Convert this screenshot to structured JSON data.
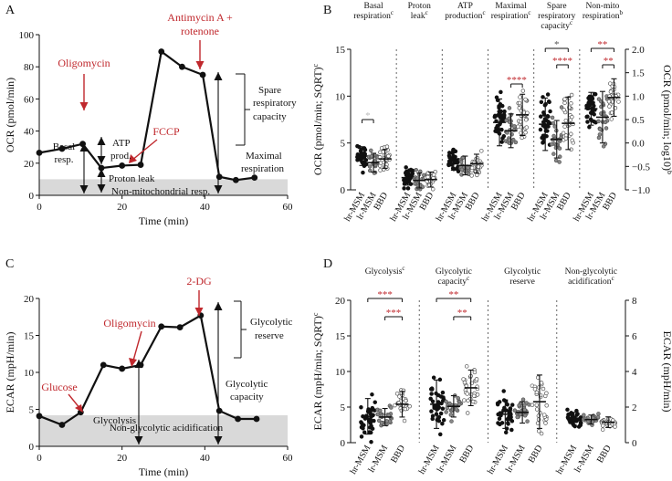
{
  "panels": {
    "a": "A",
    "b": "B",
    "c": "C",
    "d": "D"
  },
  "colors": {
    "accent_red": "#c0282d",
    "highlight_gray": "#bbbbbb",
    "baseline_gray": "#d9d9d9",
    "black": "#111111"
  },
  "panel_a": {
    "chart_data": {
      "type": "line",
      "title": "",
      "xlabel": "Time (min)",
      "ylabel": "OCR (pmol/min)",
      "xlim": [
        0,
        60
      ],
      "ylim": [
        0,
        100
      ],
      "xticks": [
        "0",
        "20",
        "40",
        "60"
      ],
      "yticks": [
        "0",
        "20",
        "40",
        "60",
        "80",
        "100"
      ],
      "series": [
        {
          "name": "OCR",
          "x": [
            0,
            5.5,
            10.5,
            15,
            20,
            24.5,
            29.5,
            34.5,
            39.5,
            43.5,
            47.5,
            52
          ],
          "y": [
            26.5,
            29,
            32,
            17,
            18.5,
            19,
            89.5,
            80,
            75,
            11.5,
            9.5,
            11
          ]
        }
      ],
      "baseline_top": 10
    },
    "labels": {
      "oligomycin": "Oligomycin",
      "fccp": "FCCP",
      "antimycin_1": "Antimycin A +",
      "antimycin_2": "rotenone",
      "basal_1": "Basal",
      "basal_2": "resp.",
      "atp_1": "ATP",
      "atp_2": "prod.",
      "proton_leak": "Proton leak",
      "nonmito": "Non-mitochondrial resp.",
      "spare_1": "Spare",
      "spare_2": "respiratory",
      "spare_3": "capacity",
      "maximal_1": "Maximal",
      "maximal_2": "respiration"
    }
  },
  "panel_c": {
    "chart_data": {
      "type": "line",
      "title": "",
      "xlabel": "Time (min)",
      "ylabel": "ECAR (mpH/min)",
      "xlim": [
        0,
        60
      ],
      "ylim": [
        0,
        20
      ],
      "xticks": [
        "0",
        "20",
        "40",
        "60"
      ],
      "yticks": [
        "0",
        "5",
        "10",
        "15",
        "20"
      ],
      "series": [
        {
          "name": "ECAR",
          "x": [
            0,
            5.5,
            10,
            15.5,
            20,
            24.5,
            29.5,
            34,
            39,
            43.5,
            48,
            52.5
          ],
          "y": [
            4.1,
            2.9,
            4.6,
            11,
            10.5,
            11,
            16.2,
            16.1,
            17.7,
            4.8,
            3.7,
            3.7
          ]
        }
      ],
      "baseline_top": 4.2
    },
    "labels": {
      "two_dg": "2-DG",
      "oligomycin": "Oligomycin",
      "glucose": "Glucose",
      "glycolysis": "Glycolysis",
      "glycolytic_1": "Glycolytic",
      "glycolytic_2": "reserve",
      "capacity_1": "Glycolytic",
      "capacity_2": "capacity",
      "nonglyc": "Non-glycolytic acidification"
    }
  },
  "panel_b": {
    "chart_data": {
      "type": "scatter",
      "ylabel_left": "OCR (pmol/min; SQRT)",
      "ylabel_left_sup": "c",
      "ylabel_right": "OCR (pmol/min; log10)",
      "ylabel_right_sup": "b",
      "ylim_left": [
        0,
        15
      ],
      "ylim_right": [
        -1,
        2
      ],
      "yticks_left": [
        "0",
        "5",
        "10",
        "15"
      ],
      "yticks_right": [
        "−1.0",
        "−0.5",
        "0.0",
        "0.5",
        "1.0",
        "1.5",
        "2.0"
      ],
      "groups": [
        "hr-MSM",
        "lr-MSM",
        "BBD"
      ],
      "sections": [
        {
          "name": "Basal respiration",
          "axis": "left",
          "means": [
            3.6,
            2.9,
            3.3
          ],
          "sd": [
            1.0,
            1.0,
            1.0
          ]
        },
        {
          "name": "Proton leak",
          "axis": "left",
          "means": [
            1.3,
            1.0,
            1.1
          ],
          "sd": [
            0.8,
            0.8,
            0.8
          ]
        },
        {
          "name": "ATP production",
          "axis": "left",
          "means": [
            3.1,
            2.6,
            2.8
          ],
          "sd": [
            1.0,
            1.0,
            1.0
          ]
        },
        {
          "name": "Maximal respiration",
          "axis": "left",
          "means": [
            7.2,
            6.3,
            8.0
          ],
          "sd": [
            2.5,
            1.8,
            2.2
          ]
        },
        {
          "name": "Spare respiratory capacity",
          "axis": "left",
          "means": [
            7.0,
            5.4,
            7.1
          ],
          "sd": [
            2.8,
            2.0,
            2.8
          ]
        },
        {
          "name": "Non-mito respiration",
          "axis": "right",
          "means": [
            0.73,
            0.55,
            0.97
          ],
          "sd": [
            0.35,
            0.55,
            0.4
          ]
        }
      ]
    },
    "headers": [
      [
        "Basal",
        "respiration",
        "c"
      ],
      [
        "Proton",
        "leak",
        "c"
      ],
      [
        "ATP",
        "production",
        "c"
      ],
      [
        "Maximal",
        "respiration",
        "c"
      ],
      [
        "Spare",
        "respiratory",
        "capacity",
        "c"
      ],
      [
        "Non-mito",
        "respiration",
        "b"
      ]
    ],
    "sig_marks": {
      "basal": "*",
      "maximal": "****",
      "spare_top": "*",
      "spare_mid": "****",
      "nonmito_top": "**",
      "nonmito_mid": "**"
    }
  },
  "panel_d": {
    "chart_data": {
      "type": "scatter",
      "ylabel_left": "ECAR (mpH/min; SQRT)",
      "ylabel_left_sup": "c",
      "ylabel_right": "ECAR (mpH/min)",
      "ylim_left": [
        0,
        20
      ],
      "ylim_right": [
        0,
        8
      ],
      "yticks_left": [
        "0",
        "5",
        "10",
        "15",
        "20"
      ],
      "yticks_right": [
        "0",
        "2",
        "4",
        "6",
        "8"
      ],
      "groups": [
        "hr-MSM",
        "lr-MSM",
        "BBD"
      ],
      "sections": [
        {
          "name": "Glycolysis",
          "axis": "left",
          "means": [
            3.7,
            3.6,
            5.4
          ],
          "sd": [
            2.5,
            1.2,
            1.8
          ]
        },
        {
          "name": "Glycolytic capacity",
          "axis": "left",
          "means": [
            5.4,
            5.1,
            7.7
          ],
          "sd": [
            3.4,
            1.5,
            2.5
          ]
        },
        {
          "name": "Glycolytic reserve",
          "axis": "right",
          "means": [
            1.6,
            1.7,
            2.3
          ],
          "sd": [
            0.8,
            0.6,
            1.5
          ]
        },
        {
          "name": "Non-glycolytic acidification",
          "axis": "right",
          "means": [
            1.35,
            1.3,
            1.15
          ],
          "sd": [
            0.35,
            0.25,
            0.3
          ]
        }
      ]
    },
    "headers": [
      [
        "Glycolysis",
        "c"
      ],
      [
        "Glycolytic",
        "capacity",
        "c"
      ],
      [
        "Glycolytic",
        "reserve",
        ""
      ],
      [
        "Non-glycolytic",
        "acidification",
        "c"
      ]
    ],
    "sig_marks": {
      "glyc_top": "***",
      "glyc_mid": "***",
      "cap_top": "**",
      "cap_mid": "**"
    }
  }
}
